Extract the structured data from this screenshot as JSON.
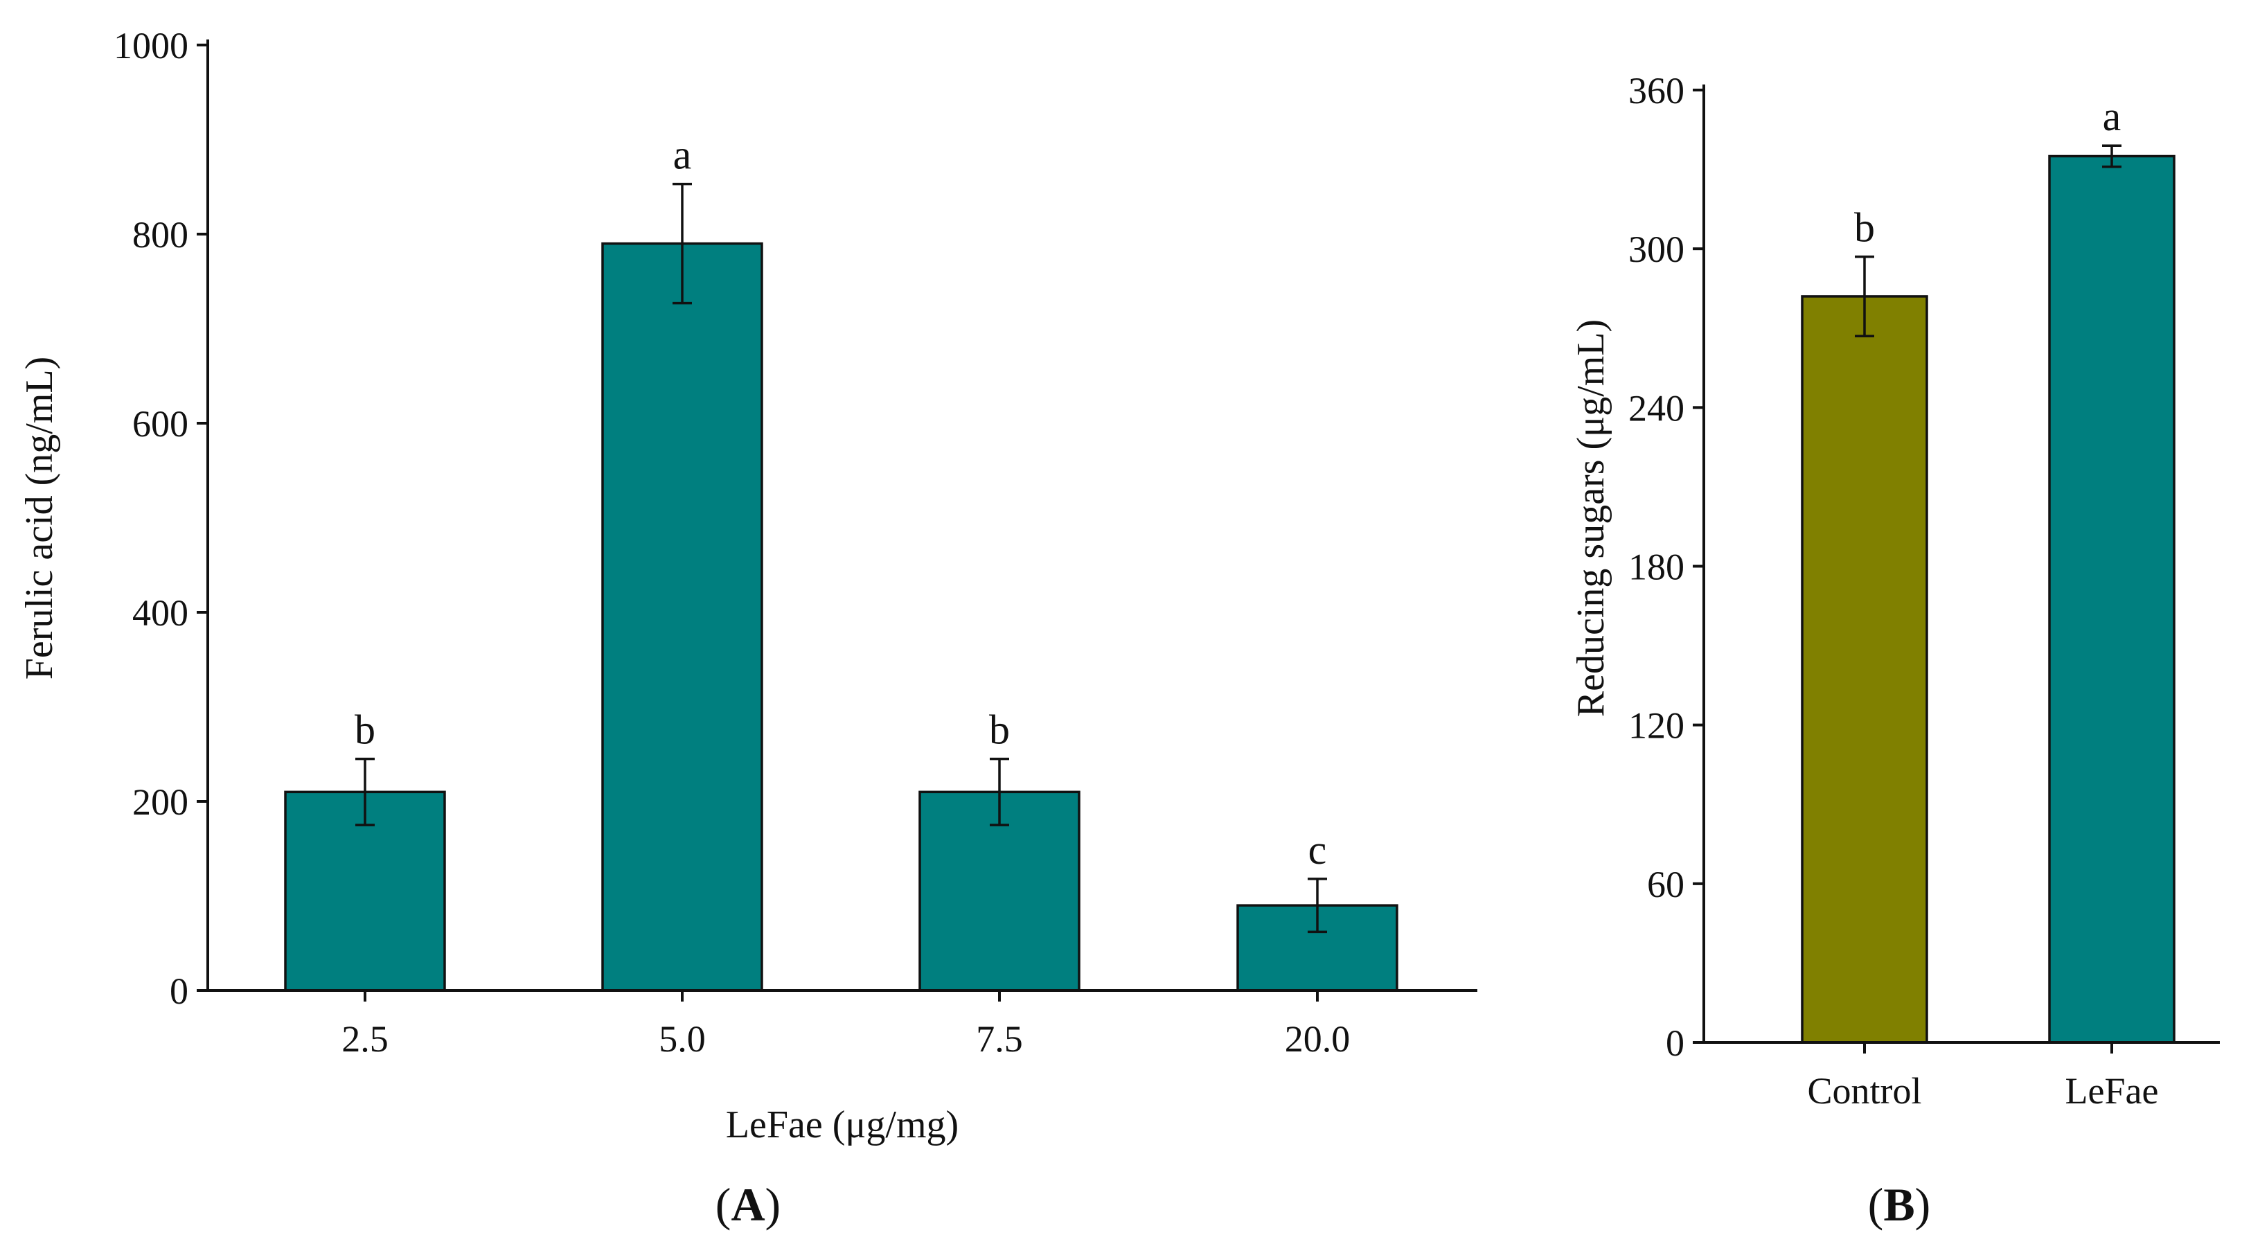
{
  "chart_data": [
    {
      "panel": "A",
      "type": "bar",
      "categories": [
        "2.5",
        "5.0",
        "7.5",
        "20.0"
      ],
      "values": [
        210,
        790,
        210,
        90
      ],
      "errors": [
        35,
        63,
        35,
        28
      ],
      "significance": [
        "b",
        "a",
        "b",
        "c"
      ],
      "bar_colors": [
        "#007F7F",
        "#007F7F",
        "#007F7F",
        "#007F7F"
      ],
      "xlabel": "LeFae (μg/mg)",
      "ylabel": "Ferulic acid (ng/mL)",
      "ylim": [
        0,
        1000
      ],
      "yticks": [
        0,
        200,
        400,
        600,
        800,
        1000
      ],
      "grid": false,
      "legend": "none"
    },
    {
      "panel": "B",
      "type": "bar",
      "categories": [
        "Control",
        "LeFae"
      ],
      "values": [
        282,
        335
      ],
      "errors": [
        15,
        4
      ],
      "significance": [
        "b",
        "a"
      ],
      "bar_colors": [
        "#808000",
        "#007F7F"
      ],
      "xlabel": "",
      "ylabel": "Reducing sugars (μg/mL)",
      "ylim": [
        0,
        360
      ],
      "yticks": [
        0,
        60,
        120,
        180,
        240,
        300,
        360
      ],
      "grid": false,
      "legend": "none"
    }
  ],
  "panel_labels": [
    "A",
    "B"
  ]
}
